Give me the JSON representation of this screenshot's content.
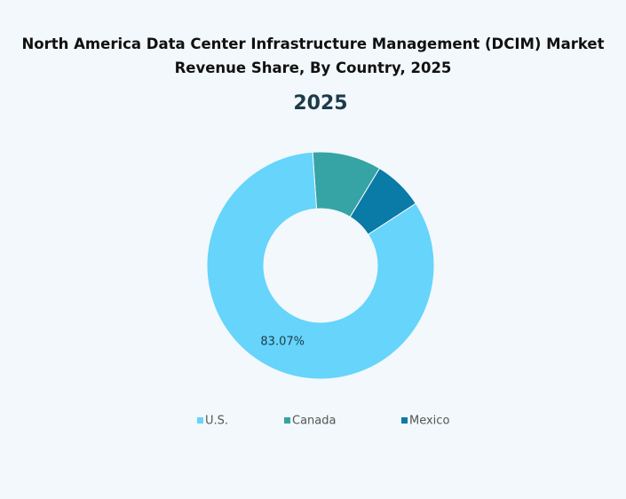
{
  "chart_data": {
    "type": "pie",
    "title": "North America Data Center Infrastructure Management (DCIM) Market Revenue Share, By Country, 2025",
    "subtitle": "2025",
    "categories": [
      "U.S.",
      "Canada",
      "Mexico"
    ],
    "values": [
      83.07,
      9.8,
      7.13
    ],
    "value_labels": [
      "83.07%",
      null,
      null
    ],
    "colors": [
      "#66d4fb",
      "#36a3a4",
      "#0a7aa6"
    ],
    "donut": true,
    "legend": "bottom"
  }
}
